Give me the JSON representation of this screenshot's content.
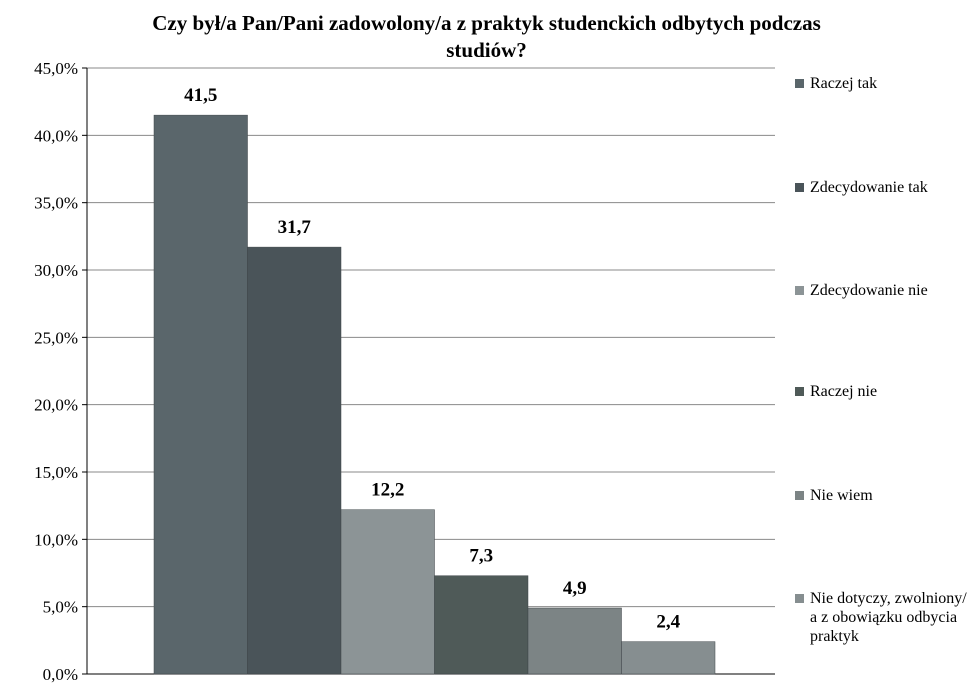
{
  "chart_data": {
    "type": "bar",
    "title_lines": [
      "Czy był/a Pan/Pani zadowolony/a z praktyk studenckich odbytych podczas",
      "studiów?"
    ],
    "xlabel": "",
    "ylabel": "",
    "ylim": [
      0,
      45
    ],
    "yticks": [
      "0,0%",
      "5,0%",
      "10,0%",
      "15,0%",
      "20,0%",
      "25,0%",
      "30,0%",
      "35,0%",
      "40,0%",
      "45,0%"
    ],
    "grid": true,
    "legend_position": "right",
    "categories": [
      "Raczej tak",
      "Zdecydowanie tak",
      "Zdecydowanie nie",
      "Raczej nie",
      "Nie wiem",
      "Nie dotyczy, zwolniony/ a z obowiązku odbycia praktyk"
    ],
    "values": [
      41.5,
      31.7,
      12.2,
      7.3,
      4.9,
      2.4
    ],
    "value_labels": [
      "41,5",
      "31,7",
      "12,2",
      "7,3",
      "4,9",
      "2,4"
    ],
    "colors": [
      "#5a666b",
      "#4a5459",
      "#8c9496",
      "#4f5a58",
      "#7c8485",
      "#868e90"
    ]
  }
}
